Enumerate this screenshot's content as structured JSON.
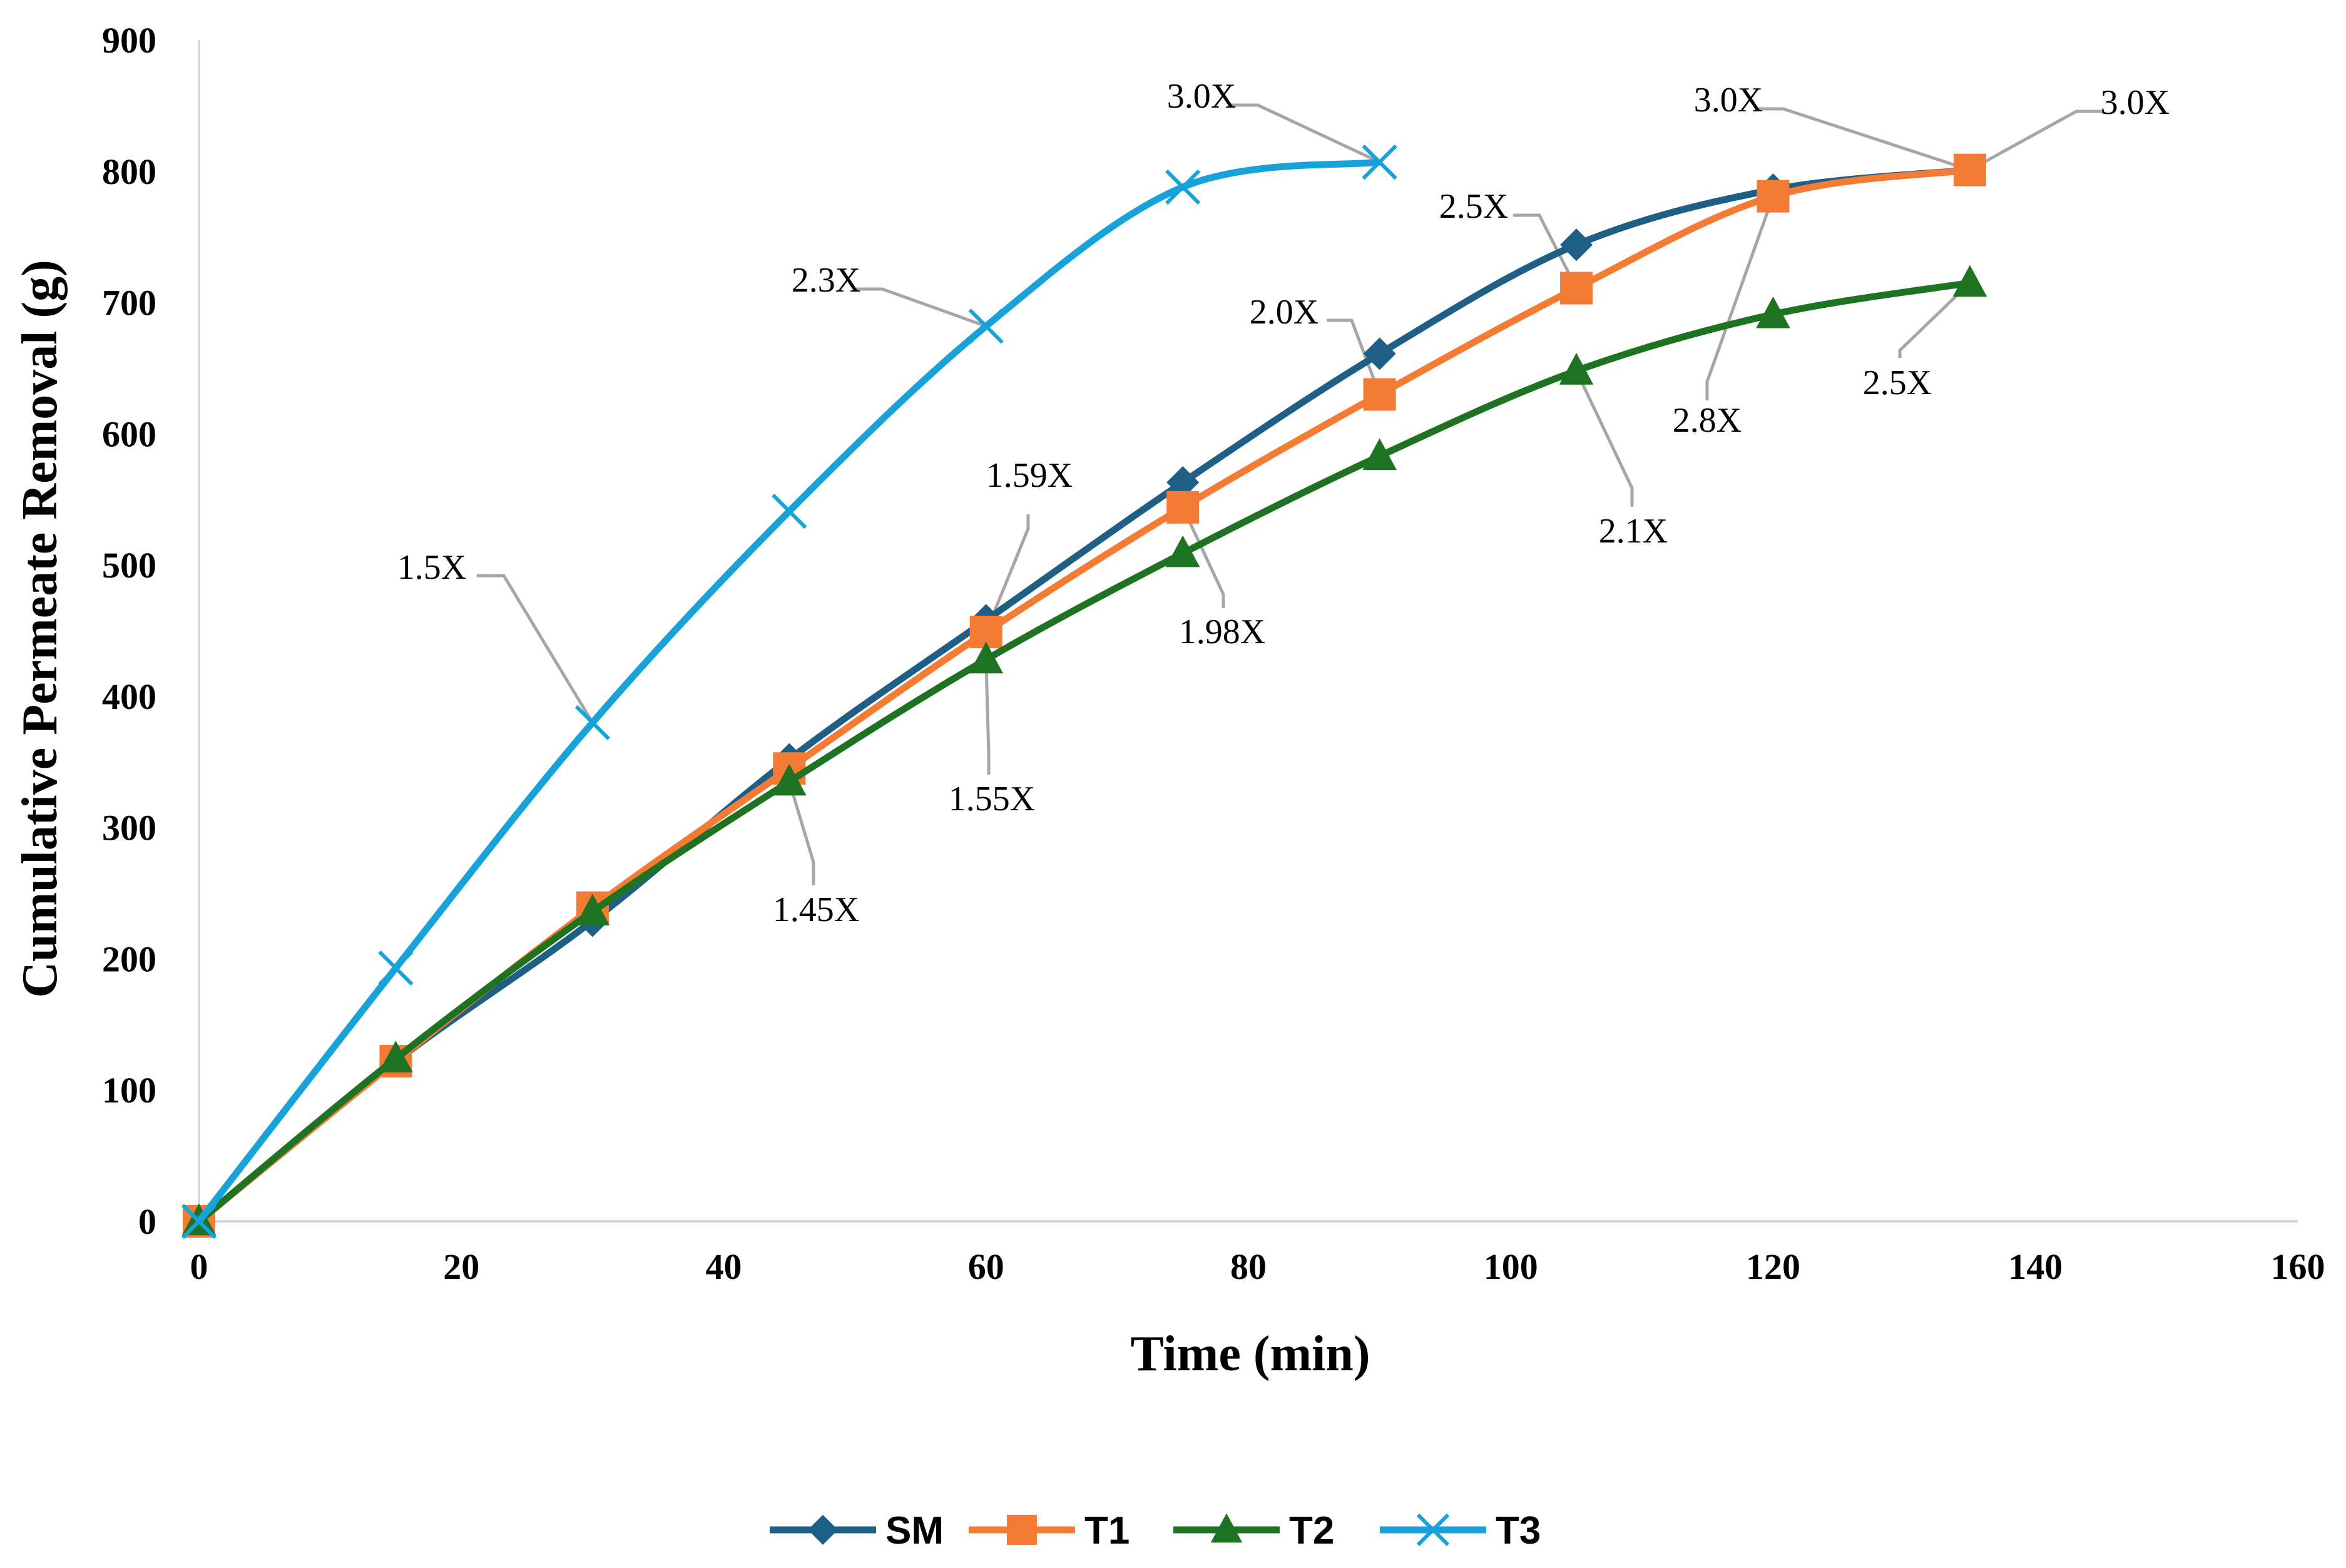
{
  "chart_data": {
    "type": "line",
    "title": "",
    "xlabel": "Time (min)",
    "ylabel": "Cumulative Permeate Removal (g)",
    "xlim": [
      0,
      160
    ],
    "ylim": [
      0,
      900
    ],
    "xticks": [
      0,
      20,
      40,
      60,
      80,
      100,
      120,
      140,
      160
    ],
    "yticks": [
      0,
      100,
      200,
      300,
      400,
      500,
      600,
      700,
      800,
      900
    ],
    "grid": false,
    "legend_position": "bottom",
    "series": [
      {
        "name": "SM",
        "color": "#1f5f86",
        "marker": "diamond",
        "x": [
          0,
          15,
          30,
          45,
          60,
          75,
          90,
          105,
          120,
          135
        ],
        "y": [
          0,
          122,
          229,
          352,
          458,
          563,
          661,
          744,
          786,
          801
        ]
      },
      {
        "name": "T1",
        "color": "#f47b34",
        "marker": "square",
        "x": [
          0,
          15,
          30,
          45,
          60,
          75,
          90,
          105,
          120,
          135
        ],
        "y": [
          0,
          122,
          239,
          345,
          449,
          544,
          630,
          711,
          781,
          801
        ]
      },
      {
        "name": "T2",
        "color": "#1d7322",
        "marker": "triangle",
        "x": [
          0,
          15,
          30,
          45,
          60,
          75,
          90,
          105,
          120,
          135
        ],
        "y": [
          0,
          124,
          236,
          335,
          428,
          509,
          583,
          648,
          691,
          715
        ]
      },
      {
        "name": "T3",
        "color": "#17a3da",
        "marker": "x",
        "x": [
          0,
          15,
          30,
          45,
          60,
          75,
          90
        ],
        "y": [
          0,
          193,
          380,
          541,
          682,
          788,
          807
        ]
      }
    ],
    "annotations": [
      {
        "text": "1.5X",
        "x": 30,
        "y": 380
      },
      {
        "text": "2.3X",
        "x": 60,
        "y": 682
      },
      {
        "text": "3.0X",
        "x": 90,
        "y": 807
      },
      {
        "text": "1.45X",
        "x": 45,
        "y": 335
      },
      {
        "text": "1.55X",
        "x": 60,
        "y": 428
      },
      {
        "text": "1.59X",
        "x": 60,
        "y": 449
      },
      {
        "text": "1.98X",
        "x": 75,
        "y": 544
      },
      {
        "text": "2.0X",
        "x": 90,
        "y": 630
      },
      {
        "text": "2.1X",
        "x": 105,
        "y": 648
      },
      {
        "text": "2.5X",
        "x": 105,
        "y": 711
      },
      {
        "text": "2.8X",
        "x": 120,
        "y": 781
      },
      {
        "text": "3.0X",
        "x": 135,
        "y": 801
      },
      {
        "text": "3.0X",
        "x": 135,
        "y": 801
      },
      {
        "text": "2.5X",
        "x": 135,
        "y": 715
      }
    ]
  }
}
